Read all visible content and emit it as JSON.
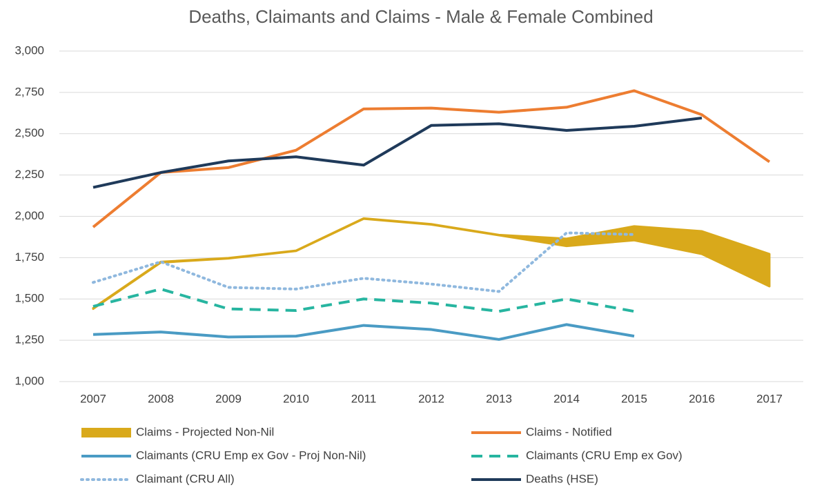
{
  "chart_data": {
    "type": "line",
    "title": "Deaths, Claimants and Claims - Male & Female Combined",
    "categories": [
      "2007",
      "2008",
      "2009",
      "2010",
      "2011",
      "2012",
      "2013",
      "2014",
      "2015",
      "2016",
      "2017"
    ],
    "ylim": [
      1000,
      3000
    ],
    "yticks": [
      {
        "value": 1000,
        "label": "1,000"
      },
      {
        "value": 1250,
        "label": "1,250"
      },
      {
        "value": 1500,
        "label": "1,500"
      },
      {
        "value": 1750,
        "label": "1,750"
      },
      {
        "value": 2000,
        "label": "2,000"
      },
      {
        "value": 2250,
        "label": "2,250"
      },
      {
        "value": 2500,
        "label": "2,500"
      },
      {
        "value": 2750,
        "label": "2,750"
      },
      {
        "value": 3000,
        "label": "3,000"
      }
    ],
    "grid": true,
    "series": [
      {
        "name": "Claims - Projected Non-Nil",
        "color": "#d9a91b",
        "style": "band",
        "low": [
          1440,
          1720,
          1745,
          1790,
          1985,
          1950,
          1885,
          1820,
          1855,
          1772,
          1576
        ],
        "high": [
          1445,
          1725,
          1748,
          1793,
          1988,
          1953,
          1888,
          1865,
          1940,
          1910,
          1772
        ]
      },
      {
        "name": "Claims - Notified",
        "color": "#ed7d31",
        "style": "solid",
        "values": [
          1935,
          2265,
          2295,
          2400,
          2650,
          2655,
          2630,
          2660,
          2760,
          2615,
          2330
        ]
      },
      {
        "name": "Claimants (CRU Emp ex Gov - Proj Non-Nil)",
        "color": "#4a9bc4",
        "style": "solid",
        "values": [
          1285,
          1300,
          1270,
          1275,
          1340,
          1315,
          1255,
          1345,
          1275,
          null,
          null
        ]
      },
      {
        "name": "Claimants (CRU Emp ex Gov)",
        "color": "#27b5a0",
        "style": "dashed",
        "values": [
          1455,
          1560,
          1440,
          1430,
          1500,
          1475,
          1425,
          1500,
          1425,
          null,
          null
        ]
      },
      {
        "name": "Claimant (CRU All)",
        "color": "#8fb8de",
        "style": "dotted",
        "values": [
          1600,
          1725,
          1570,
          1560,
          1625,
          1590,
          1545,
          1900,
          1890,
          null,
          null
        ]
      },
      {
        "name": "Deaths (HSE)",
        "color": "#1f3a5a",
        "style": "solid",
        "values": [
          2175,
          2265,
          2335,
          2360,
          2310,
          2550,
          2560,
          2520,
          2545,
          2595,
          null
        ]
      }
    ]
  }
}
